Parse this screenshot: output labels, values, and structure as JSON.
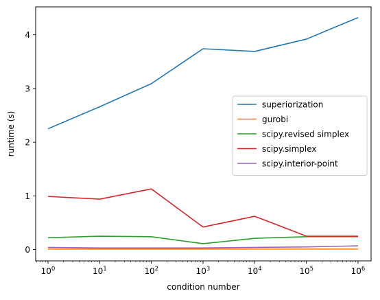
{
  "chart_data": {
    "type": "line",
    "title": "",
    "xlabel": "condition number",
    "ylabel": "runtime (s)",
    "x_scale": "log",
    "x": [
      1,
      10,
      100,
      1000,
      10000,
      100000,
      1000000
    ],
    "x_tick_labels": [
      {
        "base": "10",
        "exp": "0"
      },
      {
        "base": "10",
        "exp": "1"
      },
      {
        "base": "10",
        "exp": "2"
      },
      {
        "base": "10",
        "exp": "3"
      },
      {
        "base": "10",
        "exp": "4"
      },
      {
        "base": "10",
        "exp": "5"
      },
      {
        "base": "10",
        "exp": "6"
      }
    ],
    "y_ticks": [
      0,
      1,
      2,
      3,
      4
    ],
    "y_tick_labels": [
      "0",
      "1",
      "2",
      "3",
      "4"
    ],
    "ylim": [
      -0.21,
      4.52
    ],
    "grid": false,
    "legend_position": "center-right",
    "series": [
      {
        "name": "superiorization",
        "color": "#1f77b4",
        "values": [
          2.25,
          2.66,
          3.09,
          3.74,
          3.69,
          3.92,
          4.32
        ]
      },
      {
        "name": "gurobi",
        "color": "#ff7f0e",
        "values": [
          0.01,
          0.01,
          0.01,
          0.01,
          0.01,
          0.01,
          0.01
        ]
      },
      {
        "name": "scipy.revised simplex",
        "color": "#2ca02c",
        "values": [
          0.22,
          0.25,
          0.24,
          0.11,
          0.21,
          0.24,
          0.24
        ]
      },
      {
        "name": "scipy.simplex",
        "color": "#d62728",
        "values": [
          0.99,
          0.94,
          1.13,
          0.42,
          0.62,
          0.25,
          0.25
        ]
      },
      {
        "name": "scipy.interior-point",
        "color": "#9467bd",
        "values": [
          0.04,
          0.03,
          0.03,
          0.03,
          0.04,
          0.05,
          0.07
        ]
      }
    ]
  }
}
